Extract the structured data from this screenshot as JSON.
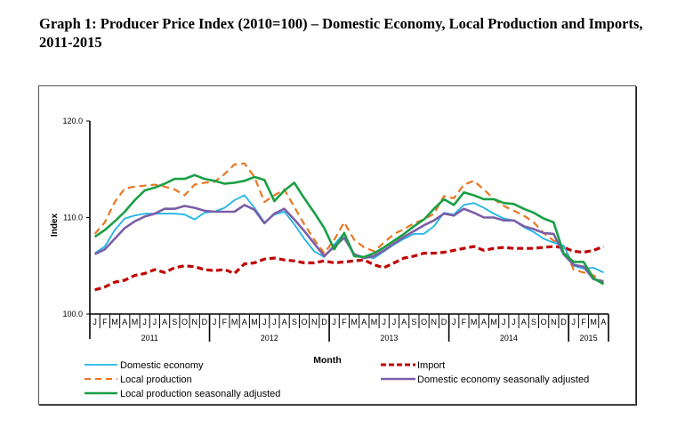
{
  "title": "Graph 1: Producer Price Index (2010=100) –  Domestic Economy, Local Production and Imports, 2011-2015",
  "chart_data": {
    "type": "line",
    "title": "Graph 1: Producer Price Index (2010=100) – Domestic Economy, Local Production and Imports, 2011-2015",
    "xlabel": "Month",
    "ylabel": "Index",
    "ylim": [
      100,
      120
    ],
    "yticks": [
      "100.0",
      "110.0",
      "120.0"
    ],
    "ytick_values": [
      100,
      110,
      120
    ],
    "grid": false,
    "legend_position": "bottom",
    "month_labels": [
      "J",
      "F",
      "M",
      "A",
      "M",
      "J",
      "J",
      "A",
      "S",
      "O",
      "N",
      "D"
    ],
    "years": [
      {
        "label": "2011",
        "months": 12
      },
      {
        "label": "2012",
        "months": 12
      },
      {
        "label": "2013",
        "months": 12
      },
      {
        "label": "2014",
        "months": 12
      },
      {
        "label": "2015",
        "months": 4
      }
    ],
    "series": [
      {
        "name": "Domestic economy",
        "color": "#1fb4e8",
        "style": "solid",
        "values": [
          106.3,
          107.0,
          108.7,
          109.9,
          110.2,
          110.4,
          110.4,
          110.4,
          110.4,
          110.3,
          109.8,
          110.5,
          110.6,
          111.0,
          111.8,
          112.3,
          111.0,
          109.5,
          110.3,
          110.6,
          109.3,
          107.8,
          106.5,
          105.9,
          107.2,
          108.4,
          106.2,
          105.9,
          105.8,
          106.5,
          107.2,
          107.8,
          108.3,
          108.3,
          109.1,
          110.5,
          110.3,
          111.3,
          111.5,
          111.0,
          110.4,
          109.9,
          109.7,
          109.0,
          108.5,
          107.8,
          107.4,
          107.1,
          105.0,
          104.7,
          104.8,
          104.3
        ]
      },
      {
        "name": "Local production",
        "color": "#e87722",
        "style": "dashed",
        "values": [
          108.3,
          109.5,
          111.6,
          113.0,
          113.2,
          113.3,
          113.4,
          113.2,
          112.9,
          112.3,
          113.4,
          113.6,
          113.7,
          114.5,
          115.5,
          115.6,
          114.2,
          111.6,
          112.3,
          112.9,
          111.1,
          109.3,
          107.7,
          106.3,
          107.7,
          109.5,
          107.7,
          106.9,
          106.5,
          107.4,
          108.3,
          108.8,
          109.4,
          109.8,
          110.4,
          112.2,
          112.0,
          113.4,
          113.8,
          112.9,
          111.9,
          111.2,
          110.7,
          110.2,
          109.5,
          108.4,
          107.6,
          107.0,
          104.6,
          104.3,
          104.0,
          103.2
        ]
      },
      {
        "name": "Local production seasonally adjusted",
        "color": "#1a9f45",
        "style": "solid",
        "values": [
          108.0,
          108.7,
          109.6,
          110.6,
          111.8,
          112.8,
          113.1,
          113.5,
          114.0,
          114.0,
          114.4,
          114.0,
          113.8,
          113.5,
          113.6,
          113.8,
          114.2,
          113.9,
          111.7,
          112.8,
          113.6,
          112.0,
          110.5,
          108.9,
          106.7,
          108.4,
          106.0,
          105.9,
          106.3,
          106.9,
          107.6,
          108.3,
          109.1,
          109.8,
          110.9,
          111.9,
          111.3,
          112.6,
          112.3,
          111.9,
          111.9,
          111.5,
          111.4,
          110.9,
          110.5,
          109.9,
          109.5,
          106.3,
          105.4,
          105.4,
          103.7,
          103.1
        ]
      },
      {
        "name": "Import",
        "color": "#c00000",
        "style": "dashed",
        "values": [
          102.5,
          102.8,
          103.3,
          103.5,
          104.0,
          104.2,
          104.6,
          104.3,
          104.8,
          105.0,
          104.9,
          104.6,
          104.5,
          104.6,
          104.2,
          105.2,
          105.3,
          105.7,
          105.8,
          105.6,
          105.5,
          105.3,
          105.3,
          105.5,
          105.3,
          105.4,
          105.5,
          105.6,
          105.1,
          104.8,
          105.3,
          105.8,
          106.0,
          106.3,
          106.3,
          106.4,
          106.6,
          106.8,
          107.0,
          106.6,
          106.8,
          106.9,
          106.8,
          106.8,
          106.8,
          106.9,
          107.0,
          106.9,
          106.5,
          106.4,
          106.6,
          107.0
        ]
      },
      {
        "name": "Domestic economy seasonally adjusted",
        "color": "#7b5ea7",
        "style": "solid",
        "values": [
          106.2,
          106.7,
          107.8,
          108.9,
          109.6,
          110.1,
          110.4,
          110.9,
          110.9,
          111.2,
          111.0,
          110.7,
          110.6,
          110.6,
          110.6,
          111.3,
          110.8,
          109.4,
          110.4,
          110.9,
          109.8,
          108.6,
          107.3,
          106.0,
          107.0,
          107.9,
          106.2,
          105.8,
          106.0,
          106.6,
          107.3,
          108.0,
          108.6,
          109.2,
          109.7,
          110.4,
          110.2,
          110.9,
          110.5,
          110.0,
          110.0,
          109.7,
          109.7,
          109.1,
          108.8,
          108.4,
          108.3,
          106.2,
          105.1,
          104.9,
          103.6,
          103.4
        ]
      }
    ]
  },
  "legend": {
    "items": [
      {
        "label": "Domestic economy"
      },
      {
        "label": "Local production"
      },
      {
        "label": "Local production seasonally adjusted"
      },
      {
        "label": "Import"
      },
      {
        "label": "Domestic economy seasonally adjusted"
      }
    ]
  }
}
